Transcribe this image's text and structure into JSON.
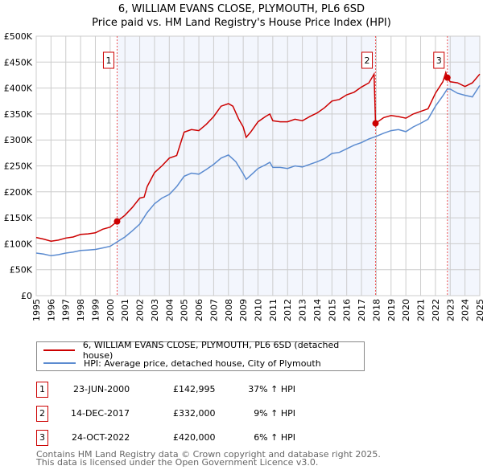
{
  "chart_data": {
    "type": "line",
    "title": "6, WILLIAM EVANS CLOSE, PLYMOUTH, PL6 6SD",
    "subtitle": "Price paid vs. HM Land Registry's House Price Index (HPI)",
    "xlim": [
      1995,
      2025
    ],
    "ylim": [
      0,
      500000
    ],
    "yticks": [
      "£0",
      "£50K",
      "£100K",
      "£150K",
      "£200K",
      "£250K",
      "£300K",
      "£350K",
      "£400K",
      "£450K",
      "£500K"
    ],
    "xticks": [
      "1995",
      "1996",
      "1997",
      "1998",
      "1999",
      "2000",
      "2001",
      "2002",
      "2003",
      "2004",
      "2005",
      "2006",
      "2007",
      "2008",
      "2009",
      "2010",
      "2011",
      "2012",
      "2013",
      "2014",
      "2015",
      "2016",
      "2017",
      "2018",
      "2019",
      "2020",
      "2021",
      "2022",
      "2023",
      "2024",
      "2025"
    ],
    "grid": true,
    "series": [
      {
        "name": "6, WILLIAM EVANS CLOSE, PLYMOUTH, PL6 6SD (detached house)",
        "color": "#cc0000",
        "x": [
          1995,
          1995.5,
          1996,
          1996.5,
          1997,
          1997.5,
          1998,
          1998.5,
          1999,
          1999.5,
          2000,
          2000.47,
          2001,
          2001.5,
          2002,
          2002.3,
          2002.5,
          2003,
          2003.5,
          2004,
          2004.5,
          2005,
          2005.5,
          2006,
          2006.5,
          2007,
          2007.5,
          2008,
          2008.3,
          2008.7,
          2009,
          2009.2,
          2009.5,
          2010,
          2010.5,
          2010.8,
          2011,
          2011.5,
          2012,
          2012.5,
          2013,
          2013.5,
          2014,
          2014.5,
          2015,
          2015.5,
          2016,
          2016.5,
          2017,
          2017.5,
          2017.85,
          2017.95,
          2018.5,
          2019,
          2019.5,
          2020,
          2020.5,
          2021,
          2021.5,
          2022,
          2022.5,
          2022.7,
          2022.81,
          2023,
          2023.5,
          2024,
          2024.5,
          2025
        ],
        "y": [
          112,
          109,
          105,
          107,
          111,
          113,
          118,
          119,
          121,
          128,
          132,
          143,
          155,
          170,
          188,
          190,
          210,
          237,
          250,
          265,
          270,
          315,
          320,
          318,
          330,
          345,
          365,
          370,
          365,
          340,
          325,
          305,
          315,
          335,
          345,
          350,
          337,
          335,
          335,
          340,
          337,
          345,
          352,
          362,
          375,
          378,
          387,
          392,
          402,
          410,
          427,
          332,
          343,
          347,
          345,
          342,
          350,
          355,
          360,
          390,
          412,
          430,
          420,
          412,
          410,
          403,
          410,
          427
        ]
      },
      {
        "name": "HPI: Average price, detached house, City of Plymouth",
        "color": "#5b8bd0",
        "x": [
          1995,
          1995.5,
          1996,
          1996.5,
          1997,
          1997.5,
          1998,
          1998.5,
          1999,
          1999.5,
          2000,
          2000.5,
          2001,
          2001.5,
          2002,
          2002.5,
          2003,
          2003.5,
          2004,
          2004.5,
          2005,
          2005.5,
          2006,
          2006.5,
          2007,
          2007.5,
          2008,
          2008.5,
          2009,
          2009.2,
          2009.7,
          2010,
          2010.5,
          2010.8,
          2011,
          2011.5,
          2012,
          2012.5,
          2013,
          2013.5,
          2014,
          2014.5,
          2015,
          2015.5,
          2016,
          2016.5,
          2017,
          2017.5,
          2018,
          2018.5,
          2019,
          2019.5,
          2020,
          2020.5,
          2021,
          2021.5,
          2022,
          2022.5,
          2022.8,
          2023,
          2023.5,
          2024,
          2024.5,
          2025
        ],
        "y": [
          82,
          80,
          77,
          79,
          82,
          84,
          87,
          88,
          89,
          92,
          95,
          104,
          113,
          125,
          138,
          160,
          177,
          188,
          195,
          210,
          230,
          236,
          234,
          243,
          253,
          265,
          271,
          258,
          235,
          224,
          237,
          245,
          252,
          257,
          247,
          247,
          245,
          250,
          248,
          253,
          258,
          264,
          274,
          276,
          283,
          290,
          295,
          302,
          307,
          313,
          318,
          320,
          316,
          325,
          332,
          340,
          365,
          385,
          398,
          398,
          390,
          386,
          383,
          405
        ]
      }
    ],
    "sales": [
      {
        "label": "1",
        "date": "23-JUN-2000",
        "x": 2000.47,
        "price": "£142,995",
        "price_value": 142995,
        "hpi": "37% ↑ HPI"
      },
      {
        "label": "2",
        "date": "14-DEC-2017",
        "x": 2017.95,
        "price": "£332,000",
        "price_value": 332000,
        "hpi": "9% ↑ HPI"
      },
      {
        "label": "3",
        "date": "24-OCT-2022",
        "x": 2022.81,
        "price": "£420,000",
        "price_value": 420000,
        "hpi": "6% ↑ HPI"
      }
    ]
  },
  "legend": {
    "property": "6, WILLIAM EVANS CLOSE, PLYMOUTH, PL6 6SD (detached house)",
    "hpi": "HPI: Average price, detached house, City of Plymouth"
  },
  "footer": {
    "line1": "Contains HM Land Registry data © Crown copyright and database right 2025.",
    "line2": "This data is licensed under the Open Government Licence v3.0."
  }
}
